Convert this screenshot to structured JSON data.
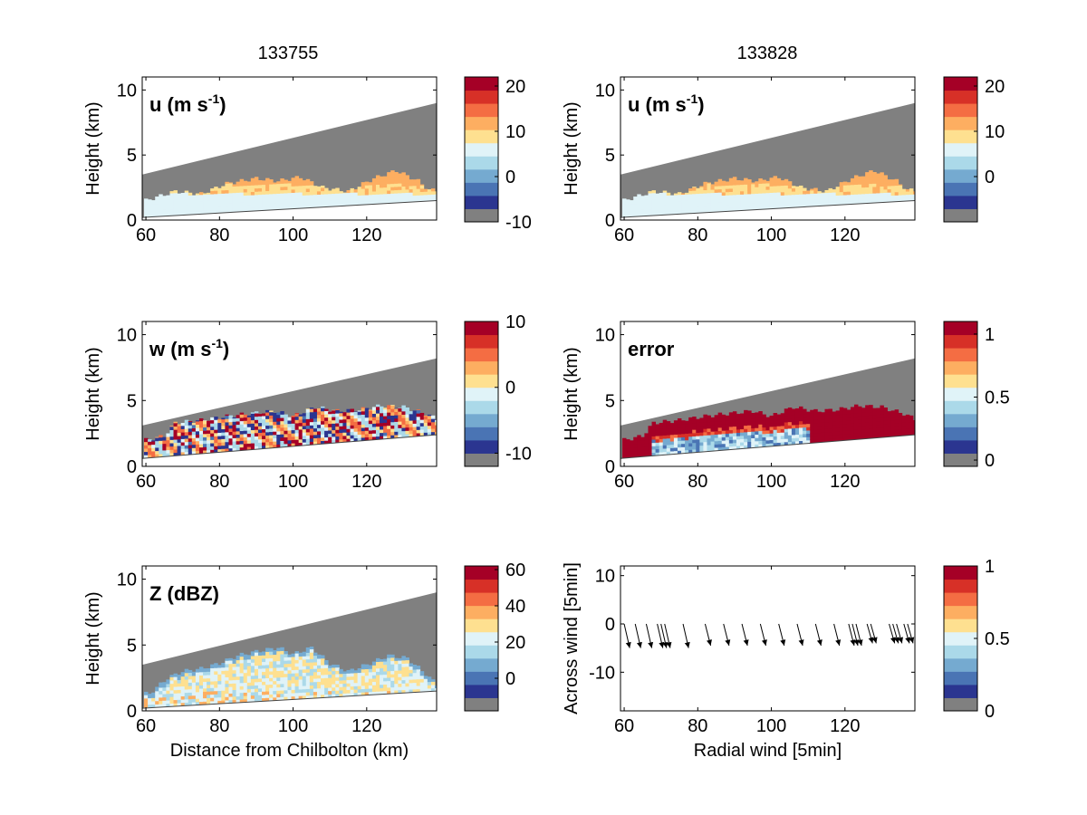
{
  "colorbar_colors": [
    "#808080",
    "#2b3590",
    "#4a74b4",
    "#75aad0",
    "#abd9e9",
    "#e0f3f8",
    "#fee090",
    "#fdae61",
    "#f46d43",
    "#d73027",
    "#a50026"
  ],
  "grey_color": "#808080",
  "arrow_color": "#000000",
  "columns": {
    "left_title": "133755",
    "right_title": "133828"
  },
  "panels": [
    {
      "id": "u-left",
      "label_main": "u (m s",
      "label_sup": "-1",
      "label_tail": ")",
      "xlabel": "",
      "ylabel": "Height (km)",
      "xticks": [
        "60",
        "80",
        "100",
        "120"
      ],
      "yticks": [
        "0",
        "5",
        "10"
      ],
      "colorbar_ticks": [
        "20",
        "10",
        "0",
        "-10"
      ],
      "colorbar_range": [
        -10,
        22
      ],
      "colorbar_tick_values": [
        20,
        10,
        0,
        -10
      ]
    },
    {
      "id": "u-right",
      "label_main": "u (m s",
      "label_sup": "-1",
      "label_tail": ")",
      "xlabel": "",
      "ylabel": "Height (km)",
      "xticks": [
        "60",
        "80",
        "100",
        "120"
      ],
      "yticks": [
        "0",
        "5",
        "10"
      ],
      "colorbar_ticks": [
        "20",
        "10",
        "0"
      ],
      "colorbar_range": [
        -10,
        22
      ],
      "colorbar_tick_values": [
        20,
        10,
        0
      ]
    },
    {
      "id": "w-left",
      "label_main": "w (m s",
      "label_sup": "-1",
      "label_tail": ")",
      "xlabel": "",
      "ylabel": "Height (km)",
      "xticks": [
        "60",
        "80",
        "100",
        "120"
      ],
      "yticks": [
        "0",
        "5",
        "10"
      ],
      "colorbar_ticks": [
        "10",
        "0",
        "-10"
      ],
      "colorbar_range": [
        -12,
        10
      ],
      "colorbar_tick_values": [
        10,
        0,
        -10
      ]
    },
    {
      "id": "error-right",
      "label_main": "error",
      "label_sup": "",
      "label_tail": "",
      "xlabel": "",
      "ylabel": "Height (km)",
      "xticks": [
        "60",
        "80",
        "100",
        "120"
      ],
      "yticks": [
        "0",
        "5",
        "10"
      ],
      "colorbar_ticks": [
        "1",
        "0.5",
        "0"
      ],
      "colorbar_range": [
        -0.05,
        1.1
      ],
      "colorbar_tick_values": [
        1,
        0.5,
        0
      ]
    },
    {
      "id": "z-left",
      "label_main": "Z (dBZ)",
      "label_sup": "",
      "label_tail": "",
      "xlabel": "Distance from Chilbolton (km)",
      "ylabel": "Height (km)",
      "xticks": [
        "60",
        "80",
        "100",
        "120"
      ],
      "yticks": [
        "0",
        "5",
        "10"
      ],
      "colorbar_ticks": [
        "60",
        "40",
        "20",
        "0"
      ],
      "colorbar_range": [
        -18,
        62
      ],
      "colorbar_tick_values": [
        60,
        40,
        20,
        0
      ]
    },
    {
      "id": "wind-right",
      "label_main": "",
      "label_sup": "",
      "label_tail": "",
      "xlabel": "Radial wind [5min]",
      "ylabel": "Across wind [5min]",
      "xticks": [
        "60",
        "80",
        "100",
        "120"
      ],
      "yticks": [
        "10",
        "0",
        "-10"
      ],
      "colorbar_ticks": [
        "1",
        "0.5",
        "0"
      ],
      "colorbar_range": [
        0,
        1
      ],
      "colorbar_tick_values": [
        1,
        0.5,
        0
      ]
    }
  ],
  "chart_data": [
    {
      "type": "heatmap",
      "title": "133755",
      "field": "u (m s-1)",
      "xlabel": "",
      "ylabel": "Height (km)",
      "xlim": [
        59,
        139
      ],
      "ylim": [
        0,
        11
      ],
      "colorbar": [
        -10,
        22
      ],
      "beam_top_km": [
        [
          59,
          3.5
        ],
        [
          139,
          9.0
        ]
      ],
      "beam_bottom_km": [
        [
          59,
          0.2
        ],
        [
          139,
          1.5
        ]
      ],
      "echo_top_km": [
        [
          60,
          1.5
        ],
        [
          68,
          2.2
        ],
        [
          75,
          2.0
        ],
        [
          82,
          2.8
        ],
        [
          90,
          3.2
        ],
        [
          96,
          3.0
        ],
        [
          102,
          3.3
        ],
        [
          108,
          2.5
        ],
        [
          115,
          2.2
        ],
        [
          122,
          3.2
        ],
        [
          128,
          3.8
        ],
        [
          134,
          3.0
        ],
        [
          137,
          2.3
        ]
      ]
    },
    {
      "type": "heatmap",
      "title": "133828",
      "field": "u (m s-1)",
      "xlabel": "",
      "ylabel": "Height (km)",
      "xlim": [
        59,
        139
      ],
      "ylim": [
        0,
        11
      ],
      "colorbar": [
        -10,
        22
      ],
      "beam_top_km": [
        [
          59,
          3.5
        ],
        [
          139,
          9.0
        ]
      ],
      "beam_bottom_km": [
        [
          59,
          0.2
        ],
        [
          139,
          1.5
        ]
      ],
      "echo_top_km": [
        [
          60,
          1.5
        ],
        [
          68,
          2.2
        ],
        [
          75,
          2.0
        ],
        [
          82,
          2.8
        ],
        [
          90,
          3.2
        ],
        [
          96,
          3.0
        ],
        [
          102,
          3.3
        ],
        [
          108,
          2.5
        ],
        [
          115,
          2.2
        ],
        [
          122,
          3.2
        ],
        [
          128,
          3.8
        ],
        [
          134,
          3.0
        ],
        [
          137,
          2.3
        ]
      ]
    },
    {
      "type": "heatmap",
      "field": "w (m s-1)",
      "xlabel": "",
      "ylabel": "Height (km)",
      "xlim": [
        59,
        139
      ],
      "ylim": [
        0,
        11
      ],
      "colorbar": [
        -12,
        10
      ],
      "beam_top_km": [
        [
          59,
          3.1
        ],
        [
          139,
          8.2
        ]
      ],
      "beam_bottom_km": [
        [
          59,
          0.6
        ],
        [
          139,
          2.4
        ]
      ],
      "echo_top_km": [
        [
          60,
          2.0
        ],
        [
          65,
          2.3
        ],
        [
          68,
          3.3
        ],
        [
          75,
          3.5
        ],
        [
          82,
          3.8
        ],
        [
          88,
          4.0
        ],
        [
          95,
          4.2
        ],
        [
          100,
          3.8
        ],
        [
          106,
          4.5
        ],
        [
          112,
          4.2
        ],
        [
          118,
          4.3
        ],
        [
          124,
          4.6
        ],
        [
          130,
          4.5
        ],
        [
          136,
          4.0
        ],
        [
          139,
          3.6
        ]
      ]
    },
    {
      "type": "heatmap",
      "field": "error",
      "xlabel": "",
      "ylabel": "Height (km)",
      "xlim": [
        59,
        139
      ],
      "ylim": [
        0,
        11
      ],
      "colorbar": [
        -0.05,
        1.1
      ],
      "beam_top_km": [
        [
          59,
          3.1
        ],
        [
          139,
          8.2
        ]
      ],
      "beam_bottom_km": [
        [
          59,
          0.6
        ],
        [
          139,
          2.4
        ]
      ],
      "echo_top_km": [
        [
          60,
          2.0
        ],
        [
          65,
          2.3
        ],
        [
          68,
          3.3
        ],
        [
          75,
          3.5
        ],
        [
          82,
          3.8
        ],
        [
          88,
          4.0
        ],
        [
          95,
          4.2
        ],
        [
          100,
          3.8
        ],
        [
          106,
          4.5
        ],
        [
          112,
          4.2
        ],
        [
          118,
          4.3
        ],
        [
          124,
          4.6
        ],
        [
          130,
          4.5
        ],
        [
          136,
          4.0
        ],
        [
          139,
          3.6
        ]
      ]
    },
    {
      "type": "heatmap",
      "field": "Z (dBZ)",
      "xlabel": "Distance from Chilbolton (km)",
      "ylabel": "Height (km)",
      "xlim": [
        59,
        139
      ],
      "ylim": [
        0,
        11
      ],
      "colorbar": [
        -18,
        62
      ],
      "beam_top_km": [
        [
          59,
          3.5
        ],
        [
          139,
          9.0
        ]
      ],
      "beam_bottom_km": [
        [
          59,
          0.2
        ],
        [
          139,
          1.5
        ]
      ],
      "echo_top_km": [
        [
          61,
          1.3
        ],
        [
          66,
          2.5
        ],
        [
          70,
          3.0
        ],
        [
          75,
          3.2
        ],
        [
          80,
          3.6
        ],
        [
          85,
          4.2
        ],
        [
          90,
          4.5
        ],
        [
          96,
          4.8
        ],
        [
          100,
          4.3
        ],
        [
          105,
          4.8
        ],
        [
          110,
          3.6
        ],
        [
          115,
          3.0
        ],
        [
          120,
          3.5
        ],
        [
          126,
          4.2
        ],
        [
          131,
          4.0
        ],
        [
          136,
          2.8
        ],
        [
          139,
          2.0
        ]
      ]
    },
    {
      "type": "scatter",
      "subtype": "quiver",
      "xlabel": "Radial wind [5min]",
      "ylabel": "Across wind [5min]",
      "xlim": [
        59,
        139
      ],
      "ylim": [
        -18,
        12
      ],
      "arrows": [
        {
          "x": 60,
          "y": 0,
          "u": 1.5,
          "v": -5.0
        },
        {
          "x": 63,
          "y": 0,
          "u": 1.5,
          "v": -5.0
        },
        {
          "x": 66,
          "y": 0,
          "u": 1.5,
          "v": -5.0
        },
        {
          "x": 69,
          "y": 0,
          "u": 1.5,
          "v": -5.0
        },
        {
          "x": 70,
          "y": 0,
          "u": 1.5,
          "v": -5.0
        },
        {
          "x": 71,
          "y": 0,
          "u": 1.5,
          "v": -5.0
        },
        {
          "x": 76,
          "y": 0,
          "u": 1.5,
          "v": -5.0
        },
        {
          "x": 82,
          "y": 0,
          "u": 1.5,
          "v": -4.5
        },
        {
          "x": 87,
          "y": 0,
          "u": 1.5,
          "v": -4.5
        },
        {
          "x": 92,
          "y": 0,
          "u": 1.5,
          "v": -4.5
        },
        {
          "x": 97,
          "y": 0,
          "u": 1.5,
          "v": -4.5
        },
        {
          "x": 102,
          "y": 0,
          "u": 1.5,
          "v": -4.5
        },
        {
          "x": 107,
          "y": 0,
          "u": 1.5,
          "v": -4.5
        },
        {
          "x": 112,
          "y": 0,
          "u": 1.5,
          "v": -4.5
        },
        {
          "x": 117,
          "y": 0,
          "u": 1.5,
          "v": -4.5
        },
        {
          "x": 121,
          "y": 0,
          "u": 1.5,
          "v": -4.5
        },
        {
          "x": 122,
          "y": 0,
          "u": 1.5,
          "v": -4.5
        },
        {
          "x": 123,
          "y": 0,
          "u": 1.5,
          "v": -4.5
        },
        {
          "x": 126,
          "y": 0,
          "u": 1.5,
          "v": -4.0
        },
        {
          "x": 127,
          "y": 0,
          "u": 1.5,
          "v": -4.0
        },
        {
          "x": 132,
          "y": 0,
          "u": 1.5,
          "v": -4.0
        },
        {
          "x": 133,
          "y": 0,
          "u": 1.5,
          "v": -4.0
        },
        {
          "x": 134,
          "y": 0,
          "u": 1.5,
          "v": -4.0
        },
        {
          "x": 136,
          "y": 0,
          "u": 1.5,
          "v": -4.0
        },
        {
          "x": 137,
          "y": 0,
          "u": 1.5,
          "v": -4.0
        }
      ]
    }
  ]
}
